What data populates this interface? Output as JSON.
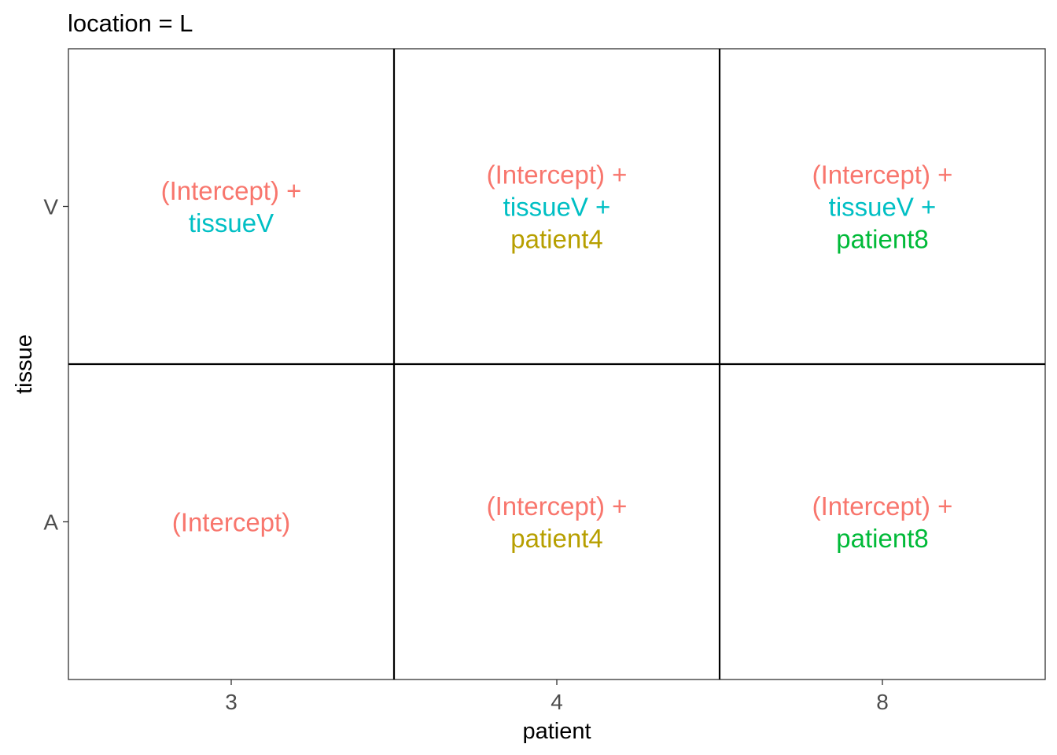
{
  "chart_data": {
    "type": "table",
    "title": "location = L",
    "xlabel": "patient",
    "ylabel": "tissue",
    "x_categories": [
      "3",
      "4",
      "8"
    ],
    "y_categories": [
      "A",
      "V"
    ],
    "term_colors": {
      "(Intercept)": "#F8766D",
      "tissueV": "#00BFC4",
      "patient4": "#B79F00",
      "patient8": "#00BA38"
    },
    "cells": [
      {
        "patient": "3",
        "tissue": "V",
        "lines": [
          {
            "text": "(Intercept) +",
            "term": "(Intercept)"
          },
          {
            "text": "tissueV",
            "term": "tissueV"
          }
        ]
      },
      {
        "patient": "4",
        "tissue": "V",
        "lines": [
          {
            "text": "(Intercept) +",
            "term": "(Intercept)"
          },
          {
            "text": "tissueV +",
            "term": "tissueV"
          },
          {
            "text": "patient4",
            "term": "patient4"
          }
        ]
      },
      {
        "patient": "8",
        "tissue": "V",
        "lines": [
          {
            "text": "(Intercept) +",
            "term": "(Intercept)"
          },
          {
            "text": "tissueV +",
            "term": "tissueV"
          },
          {
            "text": "patient8",
            "term": "patient8"
          }
        ]
      },
      {
        "patient": "3",
        "tissue": "A",
        "lines": [
          {
            "text": "(Intercept)",
            "term": "(Intercept)"
          }
        ]
      },
      {
        "patient": "4",
        "tissue": "A",
        "lines": [
          {
            "text": "(Intercept) +",
            "term": "(Intercept)"
          },
          {
            "text": "patient4",
            "term": "patient4"
          }
        ]
      },
      {
        "patient": "8",
        "tissue": "A",
        "lines": [
          {
            "text": "(Intercept) +",
            "term": "(Intercept)"
          },
          {
            "text": "patient8",
            "term": "patient8"
          }
        ]
      }
    ]
  }
}
